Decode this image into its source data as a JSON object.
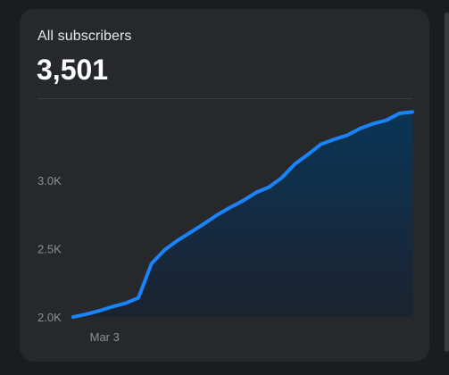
{
  "card": {
    "title": "All subscribers",
    "total": "3,501"
  },
  "colors": {
    "background": "#1b1c1e",
    "card": "#27282b",
    "line": "#1a84ff",
    "fill_top": "#0a3556",
    "fill_bottom": "#1c2330"
  },
  "chart_data": {
    "type": "area",
    "title": "All subscribers",
    "xlabel": "",
    "ylabel": "",
    "y_ticks": [
      2000,
      2500,
      3000
    ],
    "y_tick_labels": [
      "2.0K",
      "2.5K",
      "3.0K"
    ],
    "x_tick_labels": [
      "Mar 3"
    ],
    "x_tick_index": [
      1
    ],
    "ylim": [
      2000,
      3520
    ],
    "grid": false,
    "series": [
      {
        "values": [
          2000,
          2020,
          2045,
          2075,
          2100,
          2140,
          2390,
          2490,
          2560,
          2620,
          2680,
          2745,
          2800,
          2850,
          2910,
          2950,
          3020,
          3120,
          3190,
          3265,
          3300,
          3330,
          3380,
          3415,
          3440,
          3490,
          3501
        ]
      }
    ]
  }
}
